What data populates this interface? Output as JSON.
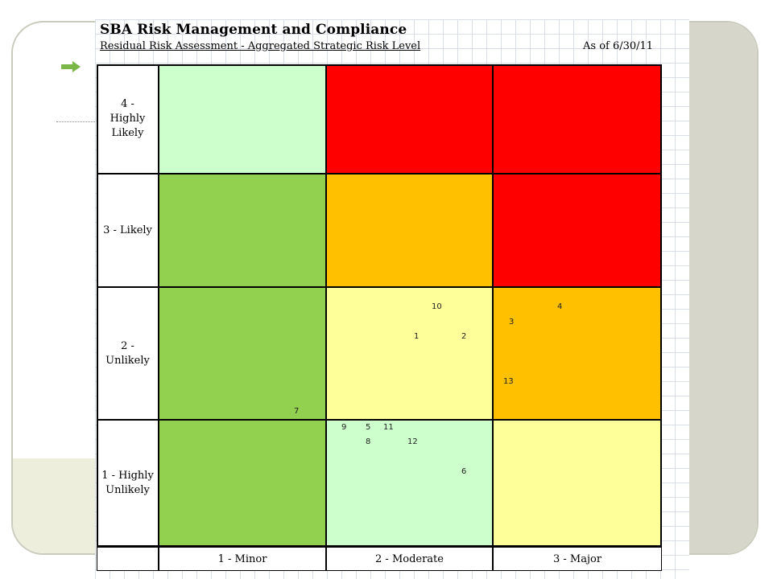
{
  "title": "SBA Risk Management and Compliance",
  "subtitle": "Residual Risk Assessment - Aggregated Strategic Risk Level",
  "as_of": "As of 6/30/11",
  "rows": [
    {
      "label": "4 -\nHighly\nLikely"
    },
    {
      "label": "3 - Likely"
    },
    {
      "label": "2 -\nUnlikely"
    },
    {
      "label": "1 - Highly\nUnlikely"
    }
  ],
  "columns": [
    "1 - Minor",
    "2 - Moderate",
    "3 - Major"
  ],
  "colors": {
    "low_light": "#ccffcc",
    "low": "#92d050",
    "high": "#ff0000",
    "medium": "#ffc000",
    "caution": "#ffff99",
    "accent_arrow": "#7ab648"
  },
  "grid_colors": [
    [
      "low_light",
      "high",
      "high"
    ],
    [
      "low",
      "medium",
      "high"
    ],
    [
      "low",
      "caution",
      "medium"
    ],
    [
      "low",
      "low_light",
      "caution"
    ]
  ],
  "risk_items": [
    {
      "id": "10",
      "row": "2 - Unlikely",
      "col": "2 - Moderate"
    },
    {
      "id": "1",
      "row": "2 - Unlikely",
      "col": "2 - Moderate"
    },
    {
      "id": "2",
      "row": "2 - Unlikely",
      "col": "2 - Moderate"
    },
    {
      "id": "4",
      "row": "2 - Unlikely",
      "col": "3 - Major"
    },
    {
      "id": "3",
      "row": "2 - Unlikely",
      "col": "3 - Major"
    },
    {
      "id": "13",
      "row": "2 - Unlikely",
      "col": "3 - Major"
    },
    {
      "id": "7",
      "row": "2 - Unlikely",
      "col": "1 - Minor"
    },
    {
      "id": "9",
      "row": "1 - Highly Unlikely",
      "col": "2 - Moderate"
    },
    {
      "id": "5",
      "row": "1 - Highly Unlikely",
      "col": "2 - Moderate"
    },
    {
      "id": "11",
      "row": "1 - Highly Unlikely",
      "col": "2 - Moderate"
    },
    {
      "id": "8",
      "row": "1 - Highly Unlikely",
      "col": "2 - Moderate"
    },
    {
      "id": "12",
      "row": "1 - Highly Unlikely",
      "col": "2 - Moderate"
    },
    {
      "id": "6",
      "row": "1 - Highly Unlikely",
      "col": "2 - Moderate"
    }
  ]
}
